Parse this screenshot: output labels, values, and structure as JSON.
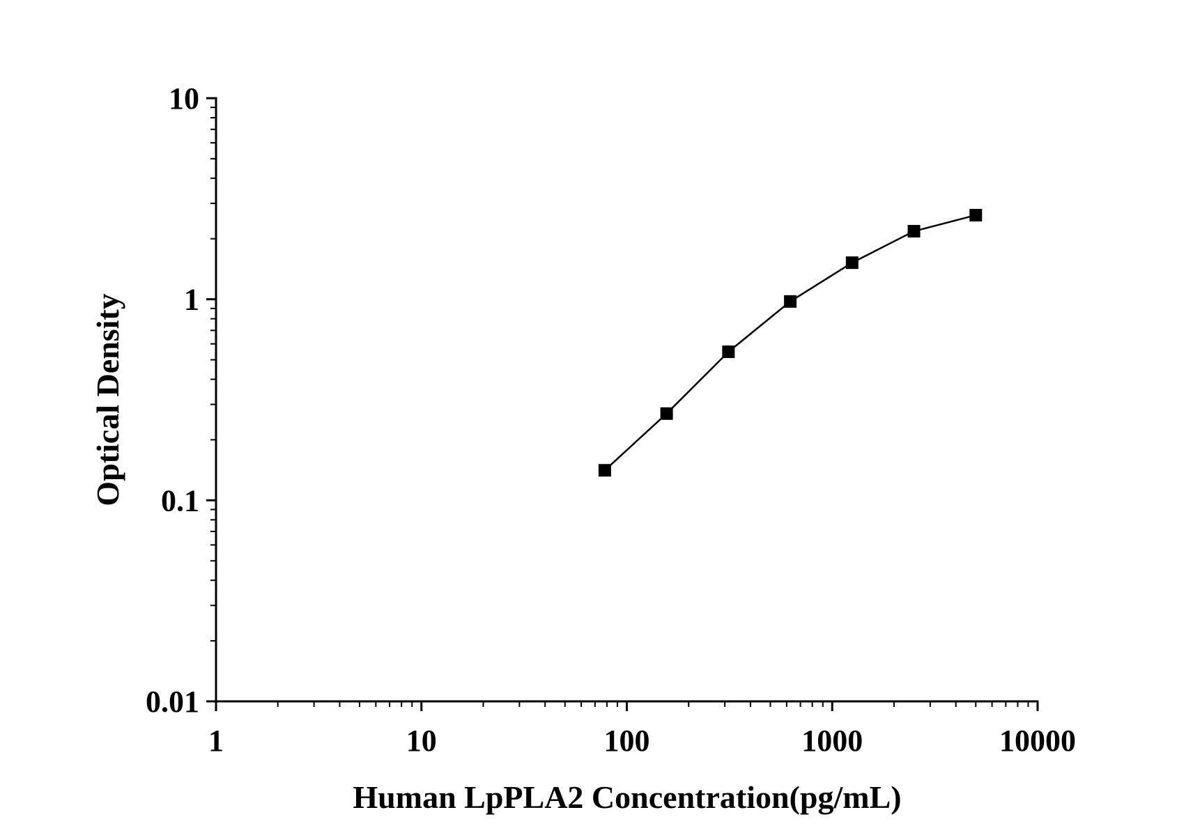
{
  "chart_data": {
    "type": "line",
    "title": "",
    "xlabel": "Human LpPLA2 Concentration(pg/mL)",
    "ylabel": "Optical Density",
    "x_scale": "log",
    "y_scale": "log",
    "xlim": [
      1,
      10000
    ],
    "ylim": [
      0.01,
      10
    ],
    "x_ticks": [
      "1",
      "10",
      "100",
      "1000",
      "10000"
    ],
    "y_ticks": [
      "0.01",
      "0.1",
      "1",
      "10"
    ],
    "grid": false,
    "legend": "none",
    "marker": "square",
    "color": "#000000",
    "series": [
      {
        "x": [
          78.125,
          156.25,
          312.5,
          625,
          1250,
          2500,
          5000
        ],
        "y": [
          0.141,
          0.27,
          0.548,
          0.975,
          1.52,
          2.18,
          2.62
        ]
      }
    ]
  }
}
